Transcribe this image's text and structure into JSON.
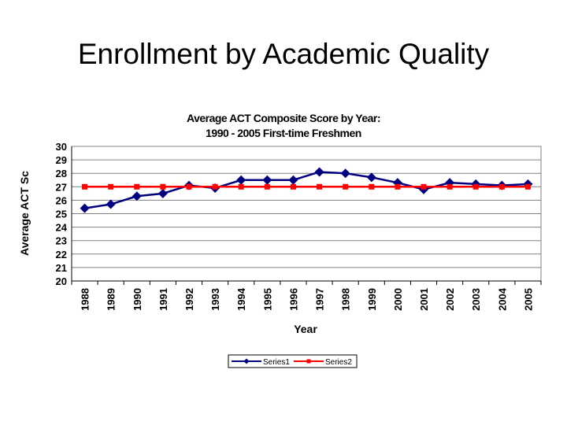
{
  "slide": {
    "title": "Enrollment by Academic Quality"
  },
  "chart_data": {
    "type": "line",
    "title": "Average ACT Composite Score by Year:",
    "subtitle": "1990 - 2005 First-time Freshmen",
    "xlabel": "Year",
    "ylabel": "Average ACT Sc",
    "ylim": [
      20,
      30
    ],
    "yticks": [
      20,
      21,
      22,
      23,
      24,
      25,
      26,
      27,
      28,
      29,
      30
    ],
    "grid": true,
    "legend_position": "bottom",
    "categories": [
      "1988",
      "1989",
      "1990",
      "1991",
      "1992",
      "1993",
      "1994",
      "1995",
      "1996",
      "1997",
      "1998",
      "1999",
      "2000",
      "2001",
      "2002",
      "2003",
      "2004",
      "2005"
    ],
    "series": [
      {
        "name": "Series1",
        "color": "#000080",
        "marker": "diamond",
        "values": [
          25.4,
          25.7,
          26.3,
          26.5,
          27.1,
          26.9,
          27.5,
          27.5,
          27.5,
          28.1,
          28.0,
          27.7,
          27.3,
          26.8,
          27.3,
          27.2,
          27.1,
          27.2
        ]
      },
      {
        "name": "Series2",
        "color": "#ff0000",
        "marker": "square",
        "values": [
          27,
          27,
          27,
          27,
          27,
          27,
          27,
          27,
          27,
          27,
          27,
          27,
          27,
          27,
          27,
          27,
          27,
          27
        ]
      }
    ]
  }
}
